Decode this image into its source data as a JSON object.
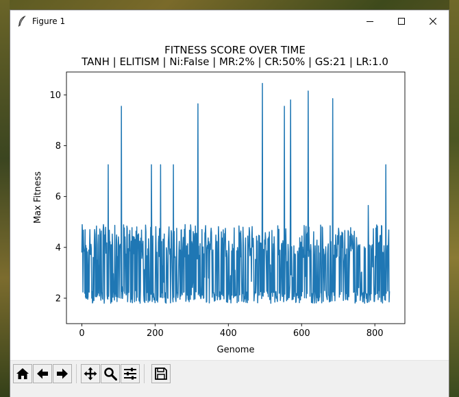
{
  "window": {
    "title": "Figure 1",
    "icon": "feather-icon"
  },
  "toolbar": {
    "buttons": [
      {
        "name": "home",
        "icon": "home-icon"
      },
      {
        "name": "back",
        "icon": "arrow-left-icon"
      },
      {
        "name": "forward",
        "icon": "arrow-right-icon"
      },
      {
        "name": "pan",
        "icon": "move-icon"
      },
      {
        "name": "zoom",
        "icon": "magnifier-icon"
      },
      {
        "name": "configure-subplots",
        "icon": "sliders-icon"
      },
      {
        "name": "save",
        "icon": "floppy-disk-icon"
      }
    ]
  },
  "chart_data": {
    "type": "line",
    "title": "FITNESS SCORE OVER TIME",
    "subtitle": "TANH | ELITISM | Ni:False | MR:2% | CR:50% | GS:21 | LR:1.0",
    "xlabel": "Genome",
    "ylabel": "Max Fitness",
    "xlim": [
      -42,
      882
    ],
    "ylim": [
      1.0,
      10.9
    ],
    "xticks": [
      0,
      200,
      400,
      600,
      800
    ],
    "yticks": [
      2,
      4,
      6,
      8,
      10
    ],
    "grid": false,
    "line_color": "#1f77b4",
    "series": [
      {
        "x_start": 0,
        "x_end": 840,
        "n_points": 841,
        "baseline_low": 1.8,
        "baseline_high": 4.8,
        "spikes": [
          {
            "x": 72,
            "y": 7.25
          },
          {
            "x": 108,
            "y": 9.55
          },
          {
            "x": 190,
            "y": 7.25
          },
          {
            "x": 215,
            "y": 7.25
          },
          {
            "x": 250,
            "y": 7.25
          },
          {
            "x": 317,
            "y": 9.65
          },
          {
            "x": 493,
            "y": 10.45
          },
          {
            "x": 553,
            "y": 9.55
          },
          {
            "x": 570,
            "y": 9.8
          },
          {
            "x": 618,
            "y": 10.15
          },
          {
            "x": 685,
            "y": 9.85
          },
          {
            "x": 782,
            "y": 5.65
          },
          {
            "x": 830,
            "y": 7.25
          }
        ]
      }
    ]
  }
}
